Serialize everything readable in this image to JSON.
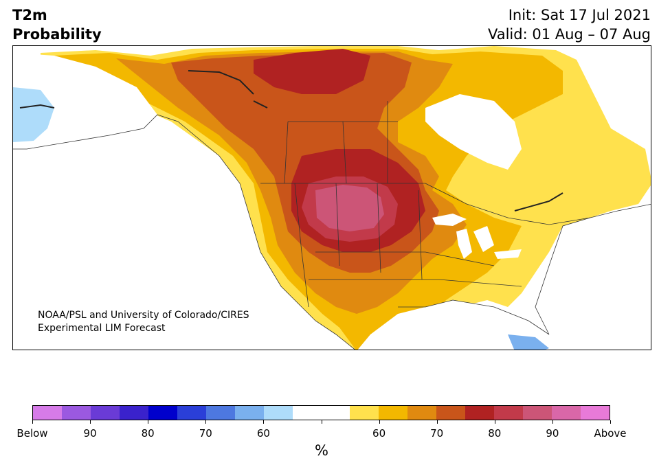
{
  "header": {
    "variable": "T2m",
    "product": "Probability",
    "init": "Init: Sat 17 Jul 2021",
    "valid": "Valid: 01 Aug – 07 Aug"
  },
  "credit": {
    "line1": "NOAA/PSL and University of Colorado/CIRES",
    "line2": "Experimental LIM Forecast"
  },
  "colorbar": {
    "unit": "%",
    "colors": [
      "#d67be8",
      "#9b59e0",
      "#6a3bd6",
      "#3a22cc",
      "#0000cc",
      "#2a3fd8",
      "#4d78e0",
      "#7ab0ee",
      "#aedcfa",
      "#ffffff",
      "#ffffff",
      "#ffe14d",
      "#f3b800",
      "#e08a10",
      "#c9551a",
      "#b02222",
      "#c23a4a",
      "#cc5577",
      "#d967a8",
      "#e87ad8"
    ],
    "labels": [
      "Below",
      "90",
      "80",
      "70",
      "60",
      "",
      "60",
      "70",
      "80",
      "90",
      "Above"
    ]
  },
  "map": {
    "regions": [
      {
        "name": "northern-canada-warm",
        "level": "70"
      },
      {
        "name": "nunavut-core",
        "level": "75"
      },
      {
        "name": "northern-plains-core",
        "level": "80"
      },
      {
        "name": "southeast-us",
        "level": "55"
      },
      {
        "name": "alaska-cool",
        "level": "below-60"
      }
    ]
  }
}
